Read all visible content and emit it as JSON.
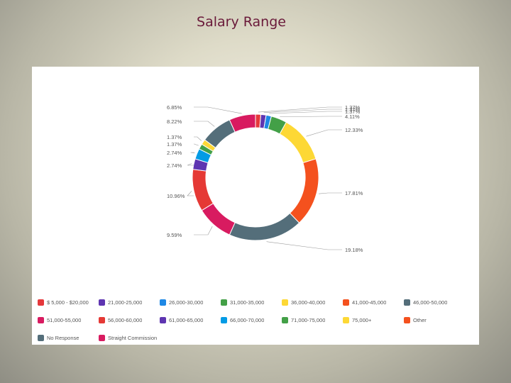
{
  "slide": {
    "title": "Salary Range"
  },
  "chart_data": {
    "type": "pie",
    "subtype": "donut",
    "title": "",
    "legend_position": "bottom",
    "slices": [
      {
        "label": "$ 5,000 - $20,000",
        "value": 1.37,
        "display": "1.37%",
        "color": "#e5383b"
      },
      {
        "label": "21,000-25,000",
        "value": 1.37,
        "display": "1.37%",
        "color": "#5e35b1"
      },
      {
        "label": "26,000-30,000",
        "value": 1.37,
        "display": "1.37%",
        "color": "#1e88e5"
      },
      {
        "label": "31,000-35,000",
        "value": 4.11,
        "display": "4.11%",
        "color": "#43a047"
      },
      {
        "label": "36,000-40,000",
        "value": 12.33,
        "display": "12.33%",
        "color": "#fdd835"
      },
      {
        "label": "41,000-45,000",
        "value": 17.81,
        "display": "17.81%",
        "color": "#f4511e"
      },
      {
        "label": "46,000-50,000",
        "value": 19.18,
        "display": "19.18%",
        "color": "#546e7a"
      },
      {
        "label": "51,000-55,000",
        "value": 9.59,
        "display": "9.59%",
        "color": "#d81b60"
      },
      {
        "label": "56,000-60,000",
        "value": 10.96,
        "display": "10.96%",
        "color": "#e53935"
      },
      {
        "label": "61,000-65,000",
        "value": 2.74,
        "display": "2.74%",
        "color": "#5e35b1"
      },
      {
        "label": "66,000-70,000",
        "value": 2.74,
        "display": "2.74%",
        "color": "#039be5"
      },
      {
        "label": "71,000-75,000",
        "value": 1.37,
        "display": "1.37%",
        "color": "#43a047"
      },
      {
        "label": "75,000+",
        "value": 1.37,
        "display": "1.37%",
        "color": "#fdd835"
      },
      {
        "label": "Other",
        "value": 0,
        "display": "",
        "color": "#f4511e"
      },
      {
        "label": "No Response",
        "value": 8.22,
        "display": "8.22%",
        "color": "#546e7a"
      },
      {
        "label": "Straight Commission",
        "value": 6.85,
        "display": "6.85%",
        "color": "#d81b60"
      }
    ]
  }
}
